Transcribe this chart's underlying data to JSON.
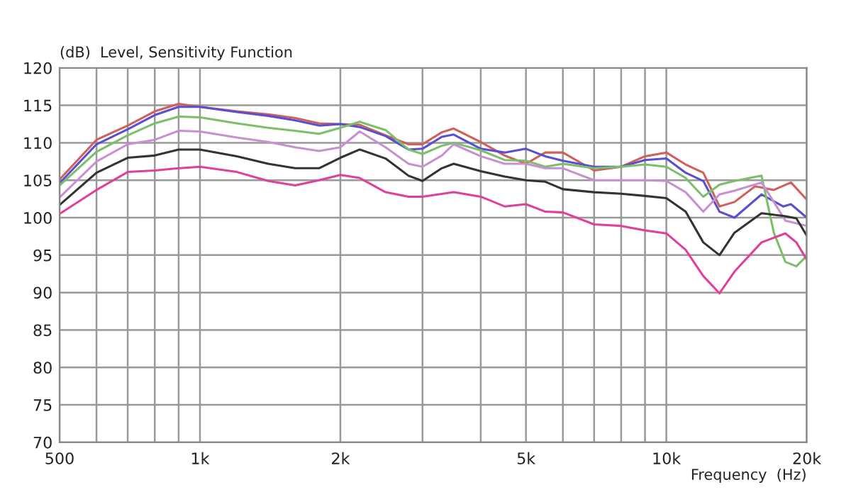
{
  "chart_data": {
    "type": "line",
    "ylabel": "(dB)  Level, Sensitivity Function",
    "xlabel": "Frequency  (Hz)",
    "log": "x",
    "grid": true,
    "marker": "none",
    "line_style": "solid",
    "xlim": [
      500,
      20000
    ],
    "ylim": [
      70,
      120
    ],
    "xticks": [
      500,
      {
        "value": 600,
        "label": null
      },
      {
        "value": 700,
        "label": null
      },
      {
        "value": 800,
        "label": null
      },
      {
        "value": 900,
        "label": null
      },
      {
        "value": 1000,
        "label": "1k"
      },
      {
        "value": 2000,
        "label": "2k"
      },
      {
        "value": 3000,
        "label": null
      },
      {
        "value": 4000,
        "label": null
      },
      {
        "value": 5000,
        "label": "5k"
      },
      {
        "value": 6000,
        "label": null
      },
      {
        "value": 7000,
        "label": null
      },
      {
        "value": 8000,
        "label": null
      },
      {
        "value": 9000,
        "label": null
      },
      {
        "value": 10000,
        "label": "10k"
      },
      {
        "value": 20000,
        "label": "20k"
      }
    ],
    "yticks": [
      70,
      75,
      80,
      85,
      90,
      95,
      100,
      105,
      110,
      115,
      120
    ],
    "series": [
      {
        "color": "#d0605a",
        "x": [
          500,
          600,
          700,
          800,
          900,
          1000,
          1200,
          1400,
          1600,
          1800,
          2000,
          2200,
          2500,
          2800,
          3000,
          3300,
          3500,
          4000,
          4500,
          5000,
          5500,
          6000,
          7000,
          8000,
          9000,
          10000,
          11000,
          12000,
          13000,
          14000,
          15500,
          17000,
          18500,
          20000
        ],
        "values": [
          105.1,
          110.4,
          112.3,
          114.2,
          115.2,
          114.8,
          114.2,
          113.8,
          113.3,
          112.6,
          112.5,
          112.4,
          111,
          109.8,
          109.8,
          111.4,
          111.9,
          110.1,
          108.3,
          107.2,
          108.7,
          108.7,
          106.3,
          106.8,
          108.2,
          108.7,
          107.1,
          106,
          101.5,
          102.1,
          104.2,
          103.7,
          104.7,
          102.4
        ]
      },
      {
        "color": "#5a4fcf",
        "x": [
          500,
          600,
          700,
          800,
          900,
          1000,
          1200,
          1400,
          1600,
          1800,
          2000,
          2200,
          2500,
          2800,
          3000,
          3300,
          3500,
          4000,
          4500,
          5000,
          5500,
          6000,
          7000,
          8000,
          9000,
          10000,
          11000,
          12000,
          13000,
          14000,
          16000,
          17800,
          18500,
          20000
        ],
        "values": [
          104.6,
          109.8,
          111.8,
          113.7,
          114.8,
          114.8,
          114.1,
          113.6,
          113,
          112.3,
          112.5,
          112.1,
          110.9,
          109.1,
          109.2,
          110.8,
          111.1,
          109.2,
          108.7,
          109.2,
          108.2,
          107.6,
          106.8,
          106.8,
          107.7,
          107.9,
          106,
          104.9,
          100.8,
          100,
          103.1,
          101.5,
          101.8,
          100
        ]
      },
      {
        "color": "#7bbf6a",
        "x": [
          500,
          600,
          700,
          800,
          900,
          1000,
          1200,
          1400,
          1600,
          1800,
          2000,
          2200,
          2500,
          2800,
          3000,
          3300,
          3500,
          4000,
          4500,
          5000,
          5500,
          6000,
          7000,
          8000,
          9000,
          10000,
          11000,
          12000,
          13000,
          14000,
          16000,
          17000,
          18000,
          19000,
          20000
        ],
        "values": [
          104.3,
          108.8,
          111,
          112.6,
          113.5,
          113.4,
          112.6,
          112,
          111.6,
          111.2,
          112,
          112.8,
          111.7,
          109.1,
          108.5,
          109.6,
          110,
          109,
          107.7,
          107.6,
          106.8,
          107.2,
          106.6,
          106.8,
          107.1,
          106.8,
          105.3,
          102.8,
          104.4,
          104.9,
          105.6,
          98,
          94.1,
          93.5,
          94.9
        ]
      },
      {
        "color": "#c890d0",
        "x": [
          500,
          600,
          700,
          800,
          900,
          1000,
          1200,
          1400,
          1600,
          1800,
          2000,
          2200,
          2500,
          2800,
          3000,
          3300,
          3500,
          4000,
          4500,
          5000,
          5500,
          6000,
          7000,
          8000,
          9000,
          10000,
          11000,
          12000,
          13000,
          14000,
          16000,
          17000,
          18000,
          20000
        ],
        "values": [
          102.7,
          107.5,
          109.8,
          110.4,
          111.6,
          111.5,
          110.7,
          110.1,
          109.4,
          108.9,
          109.4,
          111.5,
          109.4,
          107.2,
          106.8,
          108.3,
          109.8,
          108.2,
          107.2,
          107.2,
          106.6,
          106.6,
          105,
          105,
          105,
          104.9,
          103.4,
          100.8,
          103.1,
          103.6,
          104.7,
          102.1,
          99.6,
          98.9
        ]
      },
      {
        "color": "#333333",
        "x": [
          500,
          600,
          700,
          800,
          900,
          1000,
          1200,
          1400,
          1600,
          1800,
          2000,
          2200,
          2500,
          2800,
          3000,
          3300,
          3500,
          4000,
          4500,
          5000,
          5500,
          6000,
          7000,
          8000,
          9000,
          10000,
          11000,
          12000,
          13000,
          14000,
          16000,
          18000,
          19000,
          20000
        ],
        "values": [
          101.7,
          106,
          108,
          108.3,
          109.1,
          109.1,
          108.2,
          107.2,
          106.6,
          106.6,
          108,
          109.1,
          107.9,
          105.6,
          104.9,
          106.6,
          107.2,
          106.2,
          105.5,
          105,
          104.8,
          103.8,
          103.4,
          103.2,
          102.9,
          102.6,
          100.8,
          96.7,
          95,
          98,
          100.6,
          100.2,
          99.9,
          97.6
        ]
      },
      {
        "color": "#e0409a",
        "x": [
          500,
          600,
          700,
          800,
          900,
          1000,
          1200,
          1400,
          1600,
          1800,
          2000,
          2200,
          2500,
          2800,
          3000,
          3500,
          4000,
          4500,
          5000,
          5500,
          6000,
          7000,
          8000,
          9000,
          10000,
          11000,
          12000,
          13000,
          14000,
          16000,
          18000,
          19000,
          20000
        ],
        "values": [
          100.5,
          103.7,
          106.1,
          106.3,
          106.6,
          106.8,
          106.1,
          104.9,
          104.3,
          105,
          105.7,
          105.3,
          103.4,
          102.8,
          102.8,
          103.4,
          102.8,
          101.5,
          101.8,
          100.8,
          100.7,
          99.1,
          98.9,
          98.3,
          97.9,
          95.7,
          92.2,
          89.9,
          92.8,
          96.7,
          97.9,
          96.7,
          94.4
        ]
      }
    ]
  }
}
